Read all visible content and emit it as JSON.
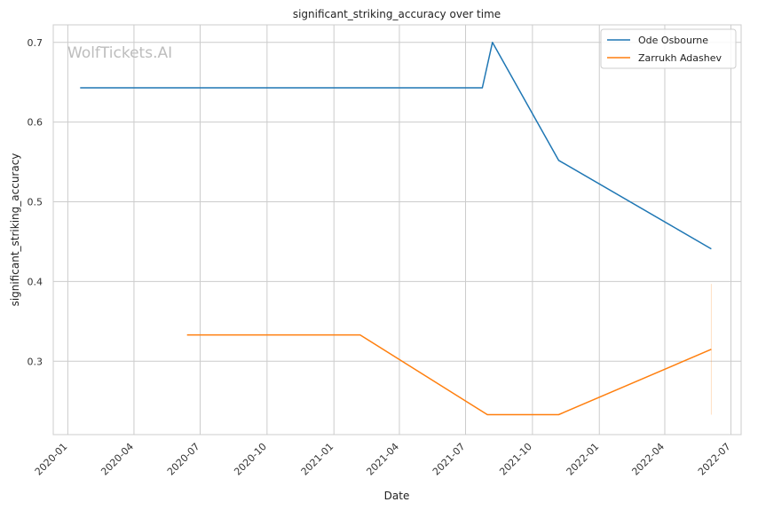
{
  "chart_data": {
    "type": "line",
    "title": "significant_striking_accuracy over time",
    "xlabel": "Date",
    "ylabel": "significant_striking_accuracy",
    "watermark": "WolfTickets.AI",
    "xlim": [
      "2019-12-12",
      "2022-07-15"
    ],
    "ylim": [
      0.208,
      0.722
    ],
    "x_ticks": [
      "2020-01",
      "2020-04",
      "2020-07",
      "2020-10",
      "2021-01",
      "2021-04",
      "2021-07",
      "2021-10",
      "2022-01",
      "2022-04",
      "2022-07"
    ],
    "y_ticks": [
      0.3,
      0.4,
      0.5,
      0.6,
      0.7
    ],
    "y_tick_labels": [
      "0.3",
      "0.4",
      "0.5",
      "0.6",
      "0.7"
    ],
    "grid": true,
    "legend_position": "top-right",
    "series": [
      {
        "name": "Ode Osbourne",
        "color": "#1f77b4",
        "points": [
          {
            "x": "2020-01-18",
            "y": 0.643
          },
          {
            "x": "2021-07-24",
            "y": 0.643
          },
          {
            "x": "2021-08-07",
            "y": 0.7
          },
          {
            "x": "2021-11-06",
            "y": 0.552
          },
          {
            "x": "2022-06-04",
            "y": 0.441
          }
        ]
      },
      {
        "name": "Zarrukh Adashev",
        "color": "#ff7f0e",
        "points": [
          {
            "x": "2020-06-13",
            "y": 0.333
          },
          {
            "x": "2021-02-06",
            "y": 0.333
          },
          {
            "x": "2021-07-31",
            "y": 0.233
          },
          {
            "x": "2021-11-06",
            "y": 0.233
          },
          {
            "x": "2022-06-04",
            "y": 0.315
          }
        ],
        "band": {
          "x": "2022-06-04",
          "y_low": 0.233,
          "y_high": 0.397
        }
      }
    ]
  }
}
